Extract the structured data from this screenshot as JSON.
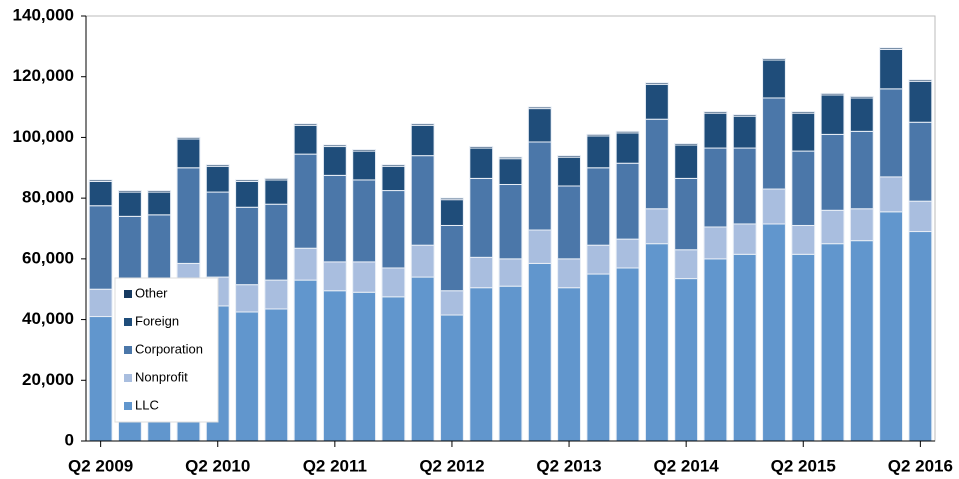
{
  "chart_data": {
    "type": "stacked-bar",
    "categories": [
      "Q2 2009",
      null,
      null,
      null,
      "Q2 2010",
      null,
      null,
      null,
      "Q2 2011",
      null,
      null,
      null,
      "Q2 2012",
      null,
      null,
      null,
      "Q2 2013",
      null,
      null,
      null,
      "Q2 2014",
      null,
      null,
      null,
      "Q2 2015",
      null,
      null,
      null,
      "Q2 2016"
    ],
    "series": [
      {
        "name": "LLC",
        "color": "#6196cd",
        "values": [
          41000,
          41000,
          41500,
          47000,
          44500,
          42500,
          43500,
          53000,
          49500,
          49000,
          47500,
          54000,
          41500,
          50500,
          51000,
          58500,
          50500,
          55000,
          57000,
          65000,
          53500,
          60000,
          61500,
          71500,
          61500,
          65000,
          66000,
          75500,
          69000
        ]
      },
      {
        "name": "Nonprofit",
        "color": "#a9bedf",
        "values": [
          9000,
          9000,
          8500,
          11500,
          9500,
          9000,
          9500,
          10500,
          9500,
          10000,
          9500,
          10500,
          8000,
          10000,
          9000,
          11000,
          9500,
          9500,
          9500,
          11500,
          9500,
          10500,
          10000,
          11500,
          9500,
          11000,
          10500,
          11500,
          10000
        ]
      },
      {
        "name": "Corporation",
        "color": "#4b77a9",
        "values": [
          27500,
          24000,
          24500,
          31500,
          28000,
          25500,
          25000,
          31000,
          28500,
          27000,
          25500,
          29500,
          21500,
          26000,
          24500,
          29000,
          24000,
          25500,
          25000,
          29500,
          23500,
          26000,
          25000,
          30000,
          24500,
          25000,
          25500,
          29000,
          26000
        ]
      },
      {
        "name": "Foreign",
        "color": "#1f4d7a",
        "values": [
          8000,
          8000,
          7500,
          9500,
          8500,
          8500,
          8000,
          9500,
          9500,
          9500,
          8000,
          10000,
          8500,
          10000,
          8500,
          11000,
          9500,
          10500,
          10000,
          11500,
          11000,
          11500,
          10500,
          12500,
          12500,
          13000,
          11000,
          13000,
          13500
        ]
      },
      {
        "name": "Other",
        "color": "#163a61",
        "values": [
          500,
          500,
          500,
          500,
          500,
          500,
          500,
          500,
          500,
          500,
          500,
          500,
          500,
          500,
          500,
          500,
          500,
          500,
          500,
          500,
          500,
          500,
          500,
          500,
          500,
          500,
          500,
          500,
          500
        ]
      }
    ],
    "ylim": [
      0,
      140000
    ],
    "yticks": [
      0,
      {
        "value": 20000,
        "label": "20,000"
      },
      {
        "value": 40000,
        "label": "40,000"
      },
      {
        "value": 60000,
        "label": "60,000"
      },
      {
        "value": 80000,
        "label": "80,000"
      },
      {
        "value": 100000,
        "label": "100,000"
      },
      {
        "value": 120000,
        "label": "120,000"
      },
      {
        "value": 140000,
        "label": "140,000"
      }
    ],
    "legend": "lower left"
  }
}
